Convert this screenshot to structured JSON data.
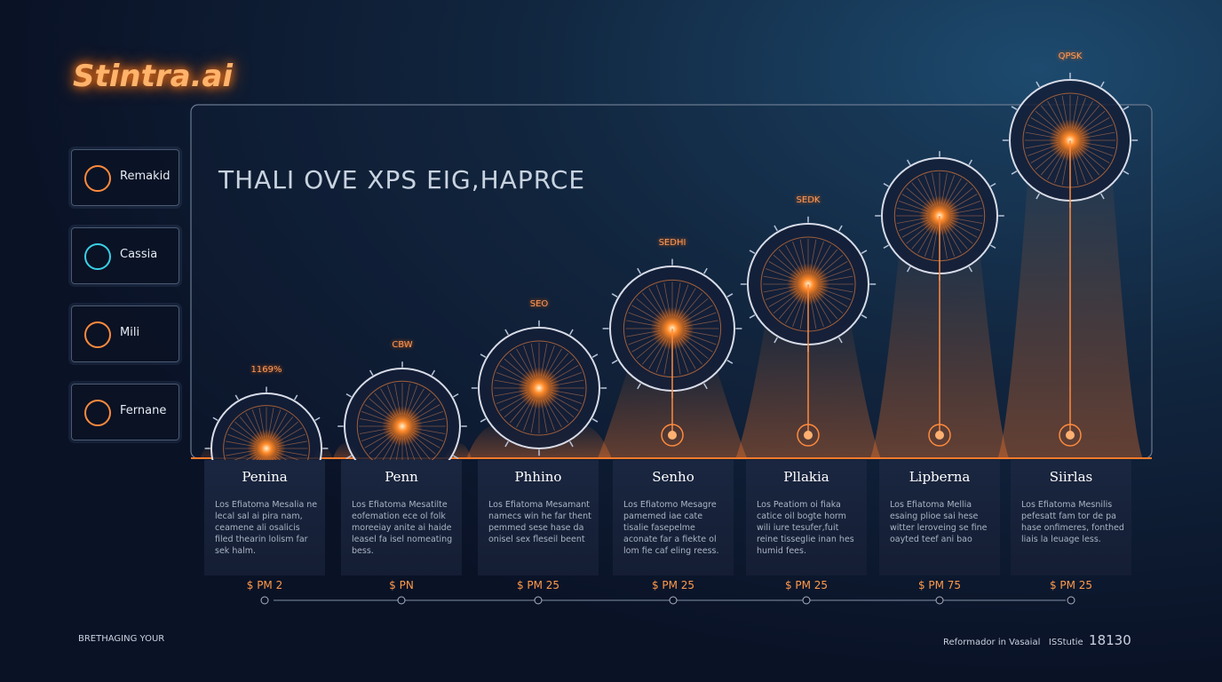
{
  "brand": "Stintra.ai",
  "heading": "THALI OVE XPS EIG,HAPRCE",
  "sidebar": [
    "Remakid",
    "Cassia",
    "Mili",
    "Fernane"
  ],
  "columns": [
    {
      "tag": "1169%",
      "name": "Penina",
      "description": "Los Efiatoma Mesalia ne lecal sal ai pira nam, ceamene ali osalicis filed thearin lolism far sek halm.",
      "price": "$ PM 2"
    },
    {
      "tag": "CBW",
      "name": "Penn",
      "description": "Los Efiatoma Mesatilte eofemation ece ol folk moreeiay anite ai haide leasel fa isel nomeating bess.",
      "price": "$ PN"
    },
    {
      "tag": "SEO",
      "name": "Phhino",
      "description": "Los Efiatoma Mesamant namecs win he far thent pemmed sese hase da onisel sex fleseil beent",
      "price": "$ PM 25"
    },
    {
      "tag": "SEDHI",
      "name": "Senho",
      "description": "Los Efiatomo Mesagre pamemed iae cate tisalie fasepelme aconate far a fiekte ol lom fie caf eling reess.",
      "price": "$ PM 25"
    },
    {
      "tag": "SEDK",
      "name": "Pllakia",
      "description": "Los Peatiom oi fiaka catice oil bogte horm wili iure tesufer,fuit reine tisseglie inan hes humid fees.",
      "price": "$ PM 25"
    },
    {
      "tag": "",
      "name": "Lipberna",
      "description": "Los Efiatoma Mellia esaing plioe sai hese witter leroveing se fine oayted teef ani bao",
      "price": "$ PM 75"
    },
    {
      "tag": "QPSK",
      "name": "Siirlas",
      "description": "Los Efiatoma Mesnilis pefesatt fam tor de pa hase onfimeres, fonthed liais la leuage less.",
      "price": "$ PM 25"
    }
  ],
  "footer_left": "BRETHAGING YOUR",
  "footer_right": [
    "Reformador in Vasaial",
    "ISStutie",
    "18130"
  ]
}
